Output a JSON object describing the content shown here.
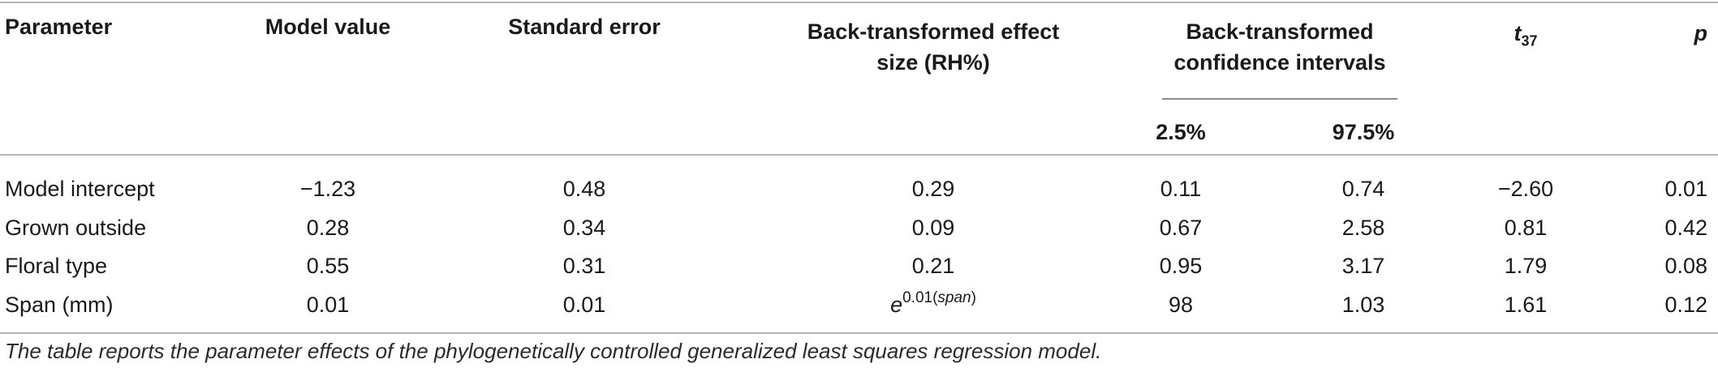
{
  "headers": {
    "parameter": "Parameter",
    "model_value": "Model value",
    "standard_error": "Standard error",
    "effect_size_line1": "Back-transformed effect",
    "effect_size_line2": "size (RH%)",
    "ci_line1": "Back-transformed",
    "ci_line2": "confidence intervals",
    "ci_low": "2.5%",
    "ci_high": "97.5%",
    "t_base": "t",
    "t_sub": "37",
    "p": "p"
  },
  "rows": [
    {
      "parameter": "Model intercept",
      "model_value": "−1.23",
      "standard_error": "0.48",
      "effect_size": "0.29",
      "ci_low": "0.11",
      "ci_high": "0.74",
      "t": "−2.60",
      "p": "0.01"
    },
    {
      "parameter": "Grown outside",
      "model_value": "0.28",
      "standard_error": "0.34",
      "effect_size": "0.09",
      "ci_low": "0.67",
      "ci_high": "2.58",
      "t": "0.81",
      "p": "0.42"
    },
    {
      "parameter": "Floral type",
      "model_value": "0.55",
      "standard_error": "0.31",
      "effect_size": "0.21",
      "ci_low": "0.95",
      "ci_high": "3.17",
      "t": "1.79",
      "p": "0.08"
    },
    {
      "parameter": "Span (mm)",
      "model_value": "0.01",
      "standard_error": "0.01",
      "effect_size_base": "e",
      "effect_size_exp_num": "0.01(",
      "effect_size_exp_var": "span",
      "effect_size_exp_close": ")",
      "ci_low": "98",
      "ci_high": "1.03",
      "t": "1.61",
      "p": "0.12"
    }
  ],
  "caption": "The table reports the parameter effects of the phylogenetically controlled generalized least squares regression model."
}
